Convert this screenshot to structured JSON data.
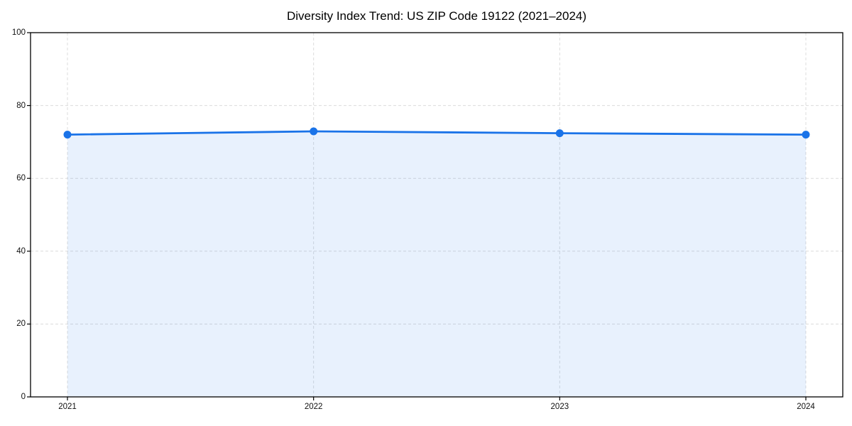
{
  "chart_data": {
    "type": "area",
    "title": "Diversity Index Trend: US ZIP Code 19122 (2021–2024)",
    "x": [
      2021,
      2022,
      2023,
      2024
    ],
    "xtick_labels": [
      "2021",
      "2022",
      "2023",
      "2024"
    ],
    "series": [
      {
        "name": "Diversity Index",
        "values": [
          72.0,
          72.9,
          72.4,
          72.0
        ]
      }
    ],
    "xlabel": "",
    "ylabel": "",
    "ylim": [
      0,
      100
    ],
    "yticks": [
      0,
      20,
      40,
      60,
      80,
      100
    ],
    "ytick_labels": [
      "0",
      "20",
      "40",
      "60",
      "80",
      "100"
    ],
    "grid": true,
    "grid_style": "dashed",
    "legend": "none",
    "colors": {
      "line": "#1a73e8",
      "marker": "#1a73e8",
      "fill": "#1a73e8",
      "fill_opacity": 0.1,
      "grid": "#dcdcdc",
      "spine": "#000000",
      "tick_text": "#111111",
      "title_text": "#000000",
      "background": "#ffffff"
    }
  }
}
